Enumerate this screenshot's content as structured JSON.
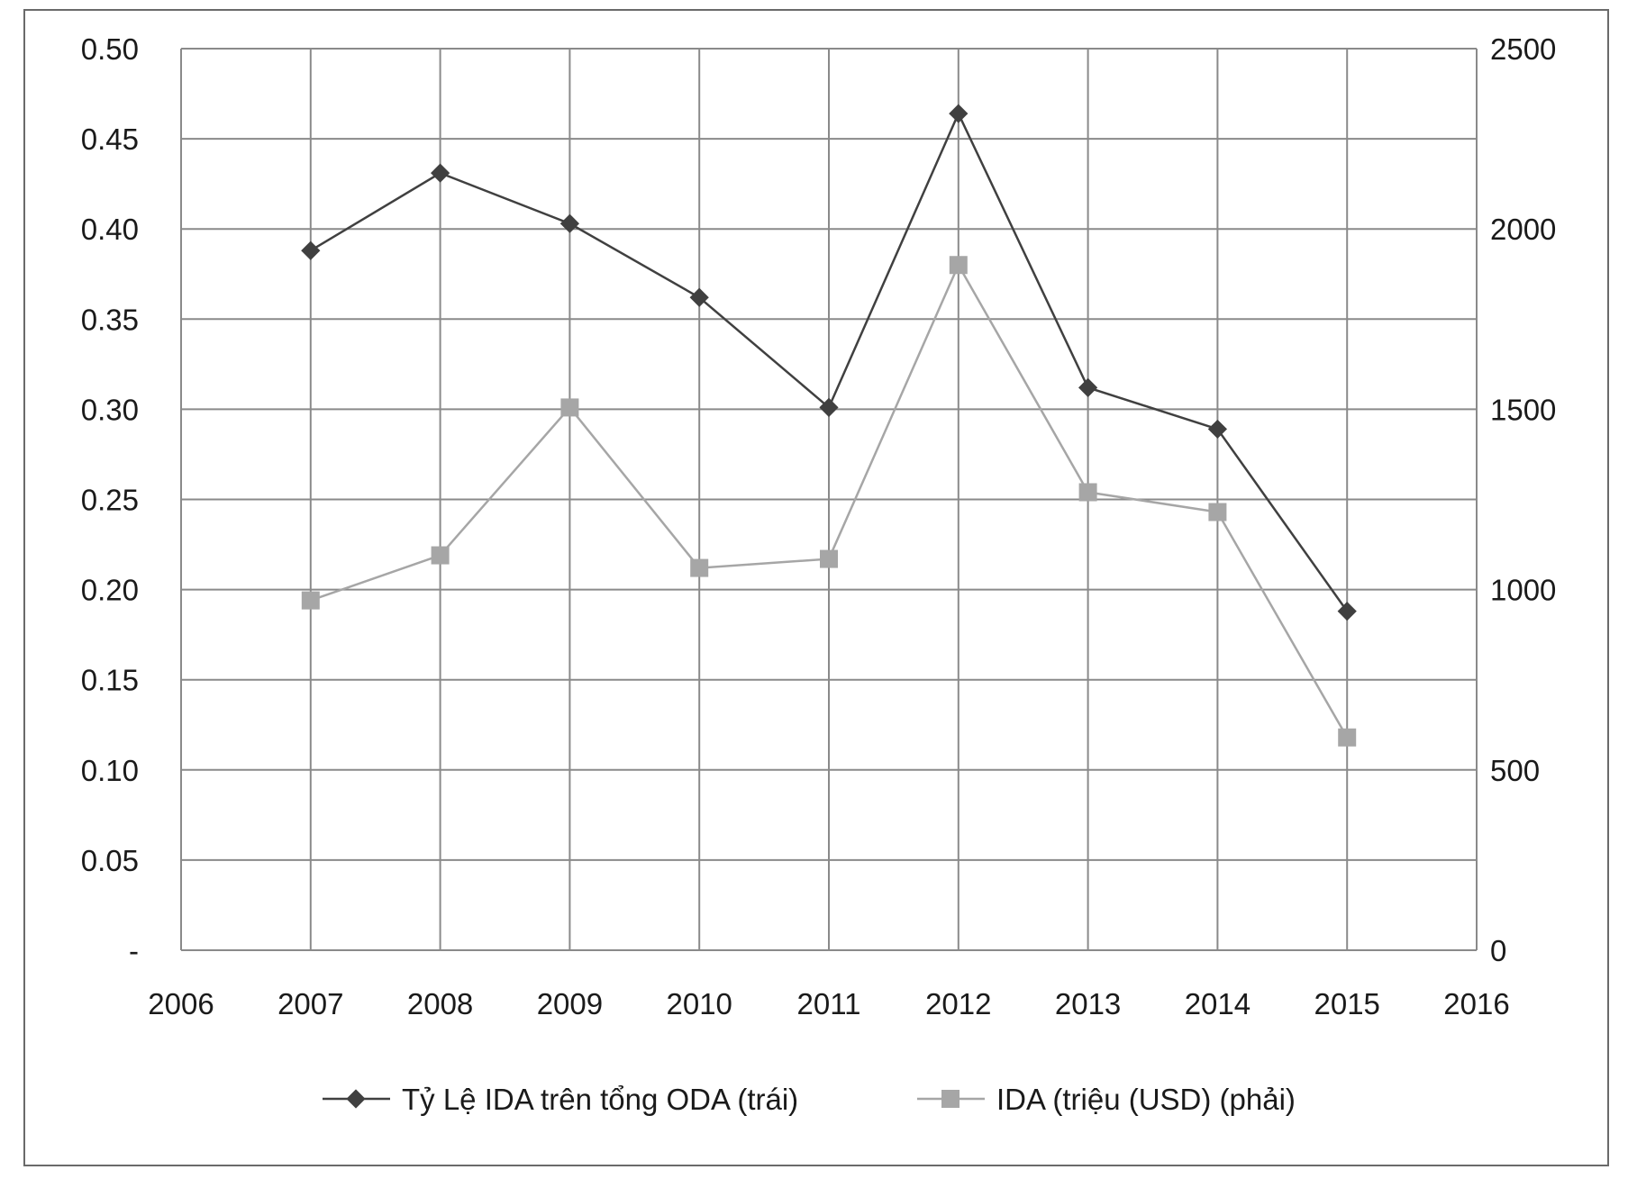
{
  "chart_data": {
    "type": "line",
    "title": "",
    "xlabel": "",
    "ylabel": "",
    "x_ticks": [
      "2006",
      "2007",
      "2008",
      "2009",
      "2010",
      "2011",
      "2012",
      "2013",
      "2014",
      "2015",
      "2016"
    ],
    "xlim": [
      2006,
      2016
    ],
    "y_left": {
      "lim": [
        0,
        0.5
      ],
      "ticks": [
        0,
        0.05,
        0.1,
        0.15,
        0.2,
        0.25,
        0.3,
        0.35,
        0.4,
        0.45,
        0.5
      ],
      "tick_labels": [
        "-",
        "0.05",
        "0.10",
        "0.15",
        "0.20",
        "0.25",
        "0.30",
        "0.35",
        "0.40",
        "0.45",
        "0.50"
      ]
    },
    "y_right": {
      "lim": [
        0,
        2500
      ],
      "ticks": [
        0,
        500,
        1000,
        1500,
        2000,
        2500
      ],
      "tick_labels": [
        "0",
        "500",
        "1000",
        "1500",
        "2000",
        "2500"
      ]
    },
    "grid": true,
    "legend_position": "bottom",
    "series": [
      {
        "name": "Tỷ Lệ IDA trên tổng ODA (trái)",
        "axis": "left",
        "marker": "diamond",
        "color": "#404040",
        "x": [
          2007,
          2008,
          2009,
          2010,
          2011,
          2012,
          2013,
          2014,
          2015
        ],
        "values": [
          0.388,
          0.431,
          0.403,
          0.362,
          0.301,
          0.464,
          0.312,
          0.289,
          0.188
        ]
      },
      {
        "name": "IDA (triệu (USD) (phải)",
        "axis": "right",
        "marker": "square",
        "color": "#a6a6a6",
        "x": [
          2007,
          2008,
          2009,
          2010,
          2011,
          2012,
          2013,
          2014,
          2015
        ],
        "values": [
          970,
          1095,
          1505,
          1060,
          1085,
          1900,
          1270,
          1215,
          590
        ]
      }
    ]
  }
}
